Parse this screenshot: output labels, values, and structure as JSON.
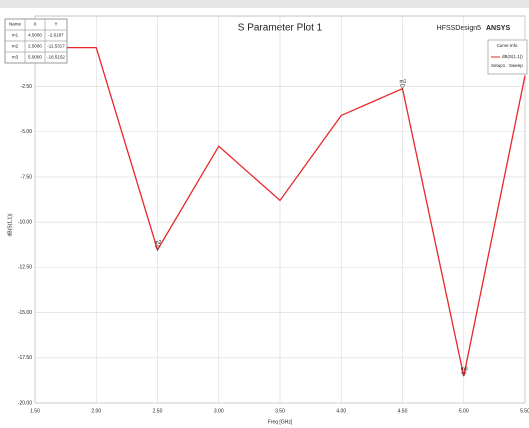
{
  "chart_data": {
    "type": "line",
    "title": "S Parameter Plot 1",
    "design": "HFSSDesign5",
    "brand": "ANSYS",
    "x_label": "Freq [GHz]",
    "y_label": "dB(S(1,1))",
    "x": [
      1.5,
      2.0,
      2.5,
      3.0,
      3.5,
      4.0,
      4.5,
      5.0,
      5.5
    ],
    "series": [
      {
        "name": "dB(S(1,1))",
        "color": "#e8272b",
        "values": [
          -0.35,
          -0.35,
          -11.5317,
          -5.8,
          -8.8,
          -4.1,
          -2.6187,
          -18.5152,
          -1.9
        ]
      }
    ],
    "legend_title": "Curve Info",
    "legend_setup": "Setup1 : Sweep",
    "xlim": [
      1.5,
      5.5
    ],
    "xticks": [
      {
        "value": 1.5,
        "label": "1.50"
      },
      {
        "value": 2.0,
        "label": "2.00"
      },
      {
        "value": 2.5,
        "label": "2.50"
      },
      {
        "value": 3.0,
        "label": "3.00"
      },
      {
        "value": 3.5,
        "label": "3.50"
      },
      {
        "value": 4.0,
        "label": "4.00"
      },
      {
        "value": 4.5,
        "label": "4.50"
      },
      {
        "value": 5.0,
        "label": "5.00"
      },
      {
        "value": 5.5,
        "label": "5.50"
      }
    ],
    "ylim": [
      -20,
      1.4
    ],
    "yticks": [
      {
        "value": -20,
        "label": "-20.00"
      },
      {
        "value": -17.5,
        "label": "-17.50"
      },
      {
        "value": -15,
        "label": "-15.00"
      },
      {
        "value": -12.5,
        "label": "-12.50"
      },
      {
        "value": -10,
        "label": "-10.00"
      },
      {
        "value": -7.5,
        "label": "-7.50"
      },
      {
        "value": -5,
        "label": "-5.00"
      },
      {
        "value": -2.5,
        "label": "-2.50"
      }
    ],
    "grid": true,
    "markers": [
      {
        "name": "m1",
        "index": 6
      },
      {
        "name": "m2",
        "index": 2
      },
      {
        "name": "m3",
        "index": 7
      }
    ],
    "marker_table": {
      "header": [
        "Name",
        "X",
        "Y"
      ],
      "rows": [
        [
          "m1",
          "4.5000",
          "-2.6187"
        ],
        [
          "m2",
          "2.5000",
          "-11.5317"
        ],
        [
          "m3",
          "5.0000",
          "-18.5152"
        ]
      ]
    }
  }
}
